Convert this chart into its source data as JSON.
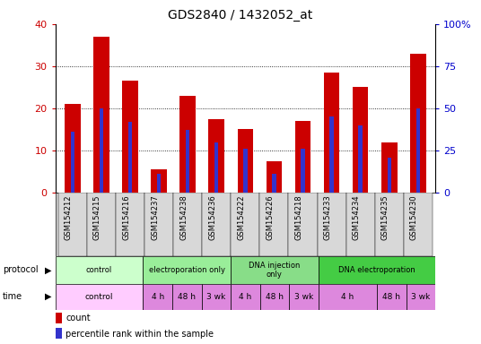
{
  "title": "GDS2840 / 1432052_at",
  "samples": [
    "GSM154212",
    "GSM154215",
    "GSM154216",
    "GSM154237",
    "GSM154238",
    "GSM154236",
    "GSM154222",
    "GSM154226",
    "GSM154218",
    "GSM154233",
    "GSM154234",
    "GSM154235",
    "GSM154230"
  ],
  "counts": [
    21,
    37,
    26.5,
    5.5,
    23,
    17.5,
    15,
    7.5,
    17,
    28.5,
    25,
    12,
    33
  ],
  "percentiles": [
    36,
    50,
    42,
    11,
    37,
    30,
    26,
    11,
    26,
    45,
    40,
    21,
    50
  ],
  "bar_color": "#cc0000",
  "pct_color": "#3333cc",
  "ylim_left": [
    0,
    40
  ],
  "ylim_right": [
    0,
    100
  ],
  "yticks_left": [
    0,
    10,
    20,
    30,
    40
  ],
  "yticks_right": [
    0,
    25,
    50,
    75,
    100
  ],
  "ytick_labels_right": [
    "0",
    "25",
    "50",
    "75",
    "100%"
  ],
  "protocol_groups": [
    {
      "label": "control",
      "start": 0,
      "end": 3,
      "color": "#ccffcc"
    },
    {
      "label": "electroporation only",
      "start": 3,
      "end": 6,
      "color": "#99ee99"
    },
    {
      "label": "DNA injection\nonly",
      "start": 6,
      "end": 9,
      "color": "#88dd88"
    },
    {
      "label": "DNA electroporation",
      "start": 9,
      "end": 13,
      "color": "#44cc44"
    }
  ],
  "time_groups": [
    {
      "label": "control",
      "start": 0,
      "end": 3
    },
    {
      "label": "4 h",
      "start": 3,
      "end": 4
    },
    {
      "label": "48 h",
      "start": 4,
      "end": 5
    },
    {
      "label": "3 wk",
      "start": 5,
      "end": 6
    },
    {
      "label": "4 h",
      "start": 6,
      "end": 7
    },
    {
      "label": "48 h",
      "start": 7,
      "end": 8
    },
    {
      "label": "3 wk",
      "start": 8,
      "end": 9
    },
    {
      "label": "4 h",
      "start": 9,
      "end": 11
    },
    {
      "label": "48 h",
      "start": 11,
      "end": 12
    },
    {
      "label": "3 wk",
      "start": 12,
      "end": 13
    }
  ],
  "time_light_color": "#ffccff",
  "time_dark_color": "#dd88dd",
  "legend_items": [
    {
      "label": "count",
      "color": "#cc0000"
    },
    {
      "label": "percentile rank within the sample",
      "color": "#3333cc"
    }
  ],
  "title_fontsize": 10,
  "axis_label_color_left": "#cc0000",
  "axis_label_color_right": "#0000cc"
}
